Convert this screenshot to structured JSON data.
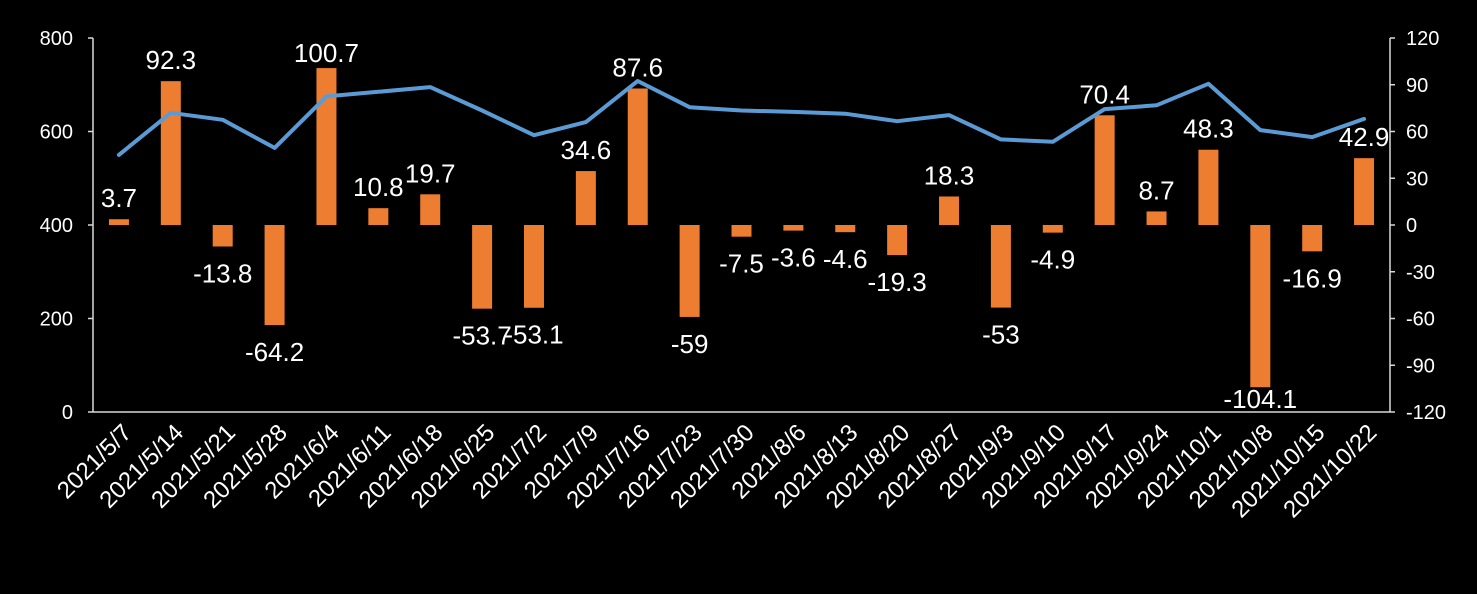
{
  "chart_data": {
    "type": "bar+line",
    "categories": [
      "2021/5/7",
      "2021/5/14",
      "2021/5/21",
      "2021/5/28",
      "2021/6/4",
      "2021/6/11",
      "2021/6/18",
      "2021/6/25",
      "2021/7/2",
      "2021/7/9",
      "2021/7/16",
      "2021/7/23",
      "2021/7/30",
      "2021/8/6",
      "2021/8/13",
      "2021/8/20",
      "2021/8/27",
      "2021/9/3",
      "2021/9/10",
      "2021/9/17",
      "2021/9/24",
      "2021/10/1",
      "2021/10/8",
      "2021/10/15",
      "2021/10/22"
    ],
    "bar_series": {
      "axis": "right",
      "color": "#ED7D31",
      "values": [
        3.7,
        92.3,
        -13.8,
        -64.2,
        100.7,
        10.8,
        19.7,
        -53.7,
        -53.1,
        34.6,
        87.6,
        -59,
        -7.5,
        -3.6,
        -4.6,
        -19.3,
        18.3,
        -53,
        -4.9,
        70.4,
        8.7,
        48.3,
        -104.1,
        -16.9,
        42.9
      ],
      "labels": [
        "3.7",
        "92.3",
        "-13.8",
        "-64.2",
        "100.7",
        "10.8",
        "19.7",
        "-53.7",
        "-53.1",
        "34.6",
        "87.6",
        "-59",
        "-7.5",
        "-3.6",
        "-4.6",
        "-19.3",
        "18.3",
        "-53",
        "-4.9",
        "70.4",
        "8.7",
        "48.3",
        "-104.1",
        "-16.9",
        "42.9"
      ]
    },
    "line_series": {
      "axis": "left",
      "color": "#5B9BD5",
      "values": [
        550,
        640,
        625,
        565,
        675,
        685,
        695,
        645,
        592,
        620,
        708,
        652,
        645,
        642,
        638,
        622,
        635,
        583,
        578,
        648,
        656,
        702,
        603,
        588,
        627
      ]
    },
    "left_axis": {
      "ylim": [
        0,
        800
      ],
      "ticks": [
        "0",
        "200",
        "400",
        "600",
        "800"
      ]
    },
    "right_axis": {
      "ylim": [
        -120,
        120
      ],
      "ticks": [
        "-120",
        "-90",
        "-60",
        "-30",
        "0",
        "30",
        "60",
        "90",
        "120"
      ]
    },
    "grid": false,
    "legend": "none",
    "background": "#000000"
  }
}
